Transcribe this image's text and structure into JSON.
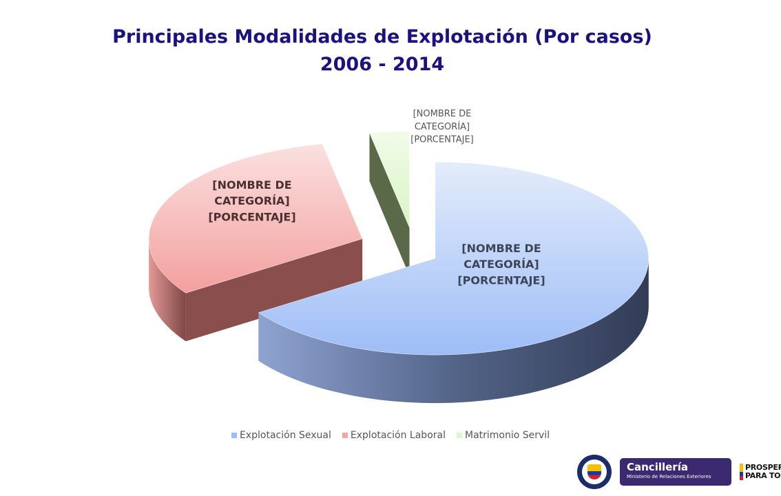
{
  "chart_data": {
    "type": "pie",
    "title": "Principales Modalidades de Explotación (Por casos)",
    "subtitle": "2006 - 2014",
    "categories": [
      "Explotación Sexual",
      "Explotación Laboral",
      "Matrimonio Servil"
    ],
    "values": [
      65.5,
      31.5,
      3
    ],
    "data_labels": [
      [
        "[NOMBRE DE",
        "CATEGORÍA]",
        "[PORCENTAJE]"
      ],
      [
        "[NOMBRE DE",
        "CATEGORÍA]",
        "[PORCENTAJE]"
      ],
      [
        "[NOMBRE DE",
        "CATEGORÍA]",
        "[PORCENTAJE]"
      ]
    ],
    "colors": [
      "#9ebcf5",
      "#f4a6a4",
      "#ddf6cc"
    ],
    "side_colors": [
      "#3f4c6e",
      "#8a4e4c",
      "#5a6a48"
    ],
    "legend_position": "bottom",
    "exploded": true,
    "style": "3d"
  },
  "logos": {
    "cancilleria": {
      "title": "Cancillería",
      "subtitle": "Ministerio de Relaciones Exteriores"
    },
    "prosperidad": {
      "line1": "PROSPERIDAD",
      "line2": "PARA TODOS"
    }
  }
}
